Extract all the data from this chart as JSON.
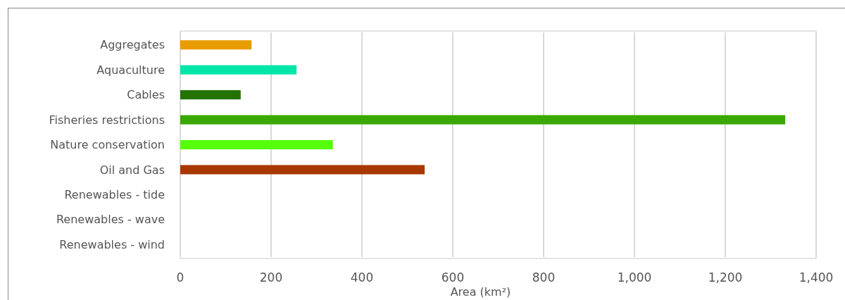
{
  "chart_data": {
    "type": "bar",
    "orientation": "horizontal",
    "xlabel": "Area (km²)",
    "categories": [
      "Aggregates",
      "Aquaculture",
      "Cables",
      "Fisheries restrictions",
      "Nature conservation",
      "Oil and Gas",
      "Renewables - tide",
      "Renewables - wave",
      "Renewables - wind"
    ],
    "values": [
      157,
      256,
      133,
      1332,
      336,
      538,
      0,
      0,
      0
    ],
    "colors": [
      "#e89c00",
      "#00e6a8",
      "#247200",
      "#3aa800",
      "#55ff0a",
      "#a83800",
      "#a83800",
      "#a83800",
      "#a83800"
    ],
    "xlim": [
      0,
      1400
    ],
    "xticks": [
      0,
      {
        "value": 200,
        "label": "200"
      },
      {
        "value": 400,
        "label": "400"
      },
      {
        "value": 600,
        "label": "600"
      },
      {
        "value": 800,
        "label": "800"
      },
      {
        "value": 1000,
        "label": "1,000"
      },
      {
        "value": 1200,
        "label": "1,200"
      },
      {
        "value": 1400,
        "label": "1,400"
      }
    ],
    "grid": "x"
  }
}
